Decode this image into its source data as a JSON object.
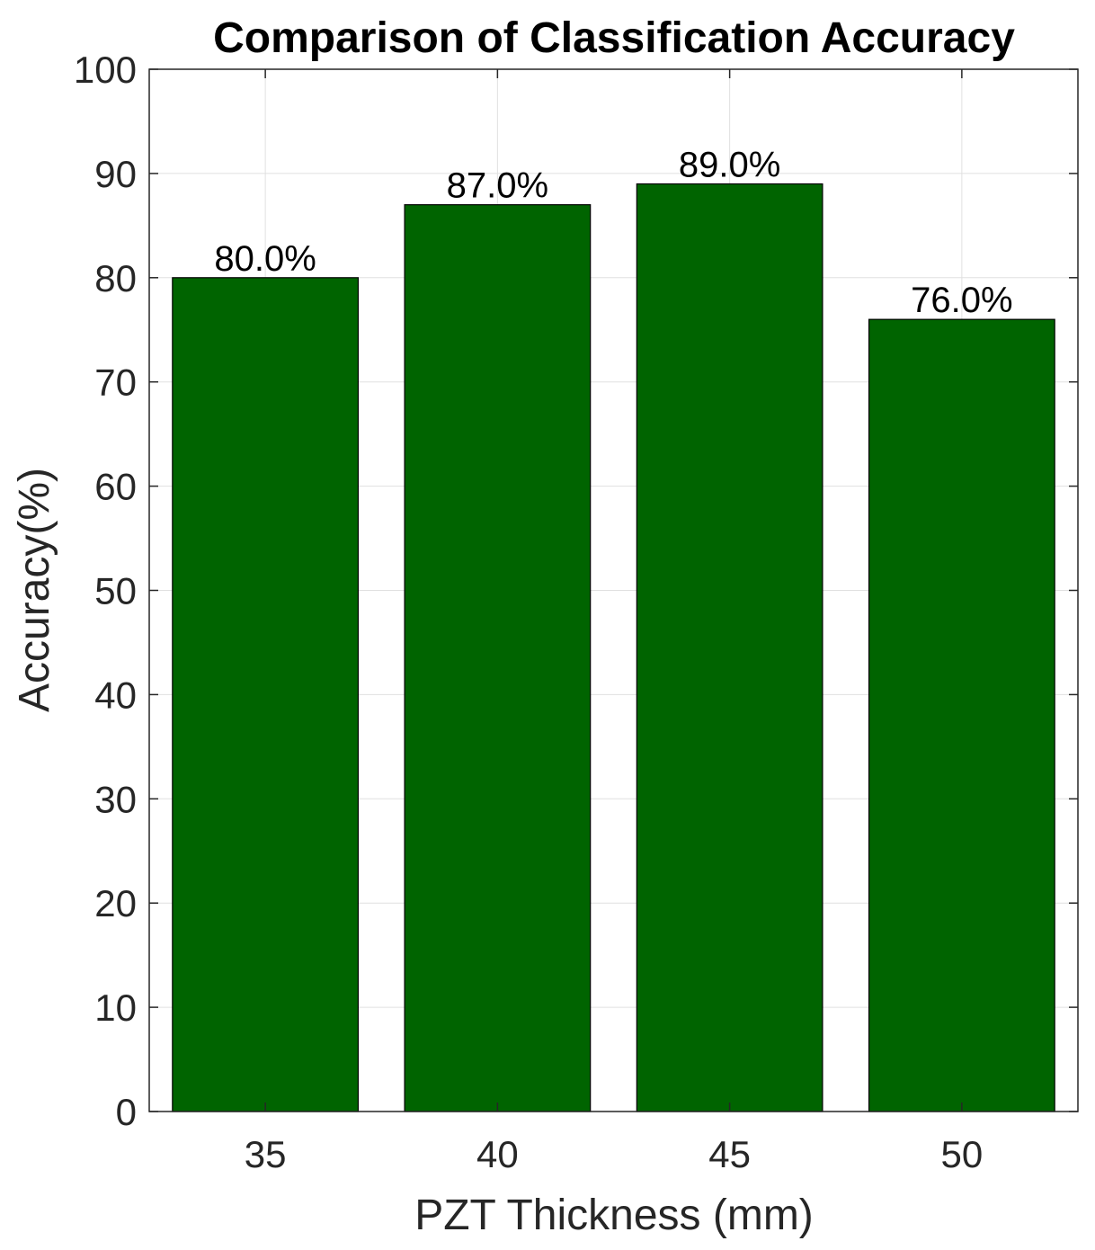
{
  "chart_data": {
    "type": "bar",
    "title": "Comparison of Classification Accuracy",
    "xlabel": "PZT Thickness (mm)",
    "ylabel": "Accuracy(%)",
    "categories": [
      "35",
      "40",
      "45",
      "50"
    ],
    "values": [
      80,
      87,
      89,
      76
    ],
    "data_labels": [
      "80.0%",
      "87.0%",
      "89.0%",
      "76.0%"
    ],
    "ylim": [
      0,
      100
    ],
    "yticks": [
      0,
      10,
      20,
      30,
      40,
      50,
      60,
      70,
      80,
      90,
      100
    ],
    "grid": true,
    "bar_color": "#006400",
    "legend": "none"
  }
}
